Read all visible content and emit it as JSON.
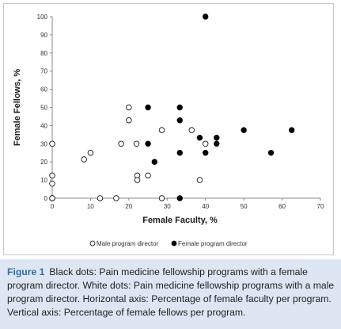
{
  "chart_data": {
    "type": "scatter",
    "xlabel": "Female Faculty, %",
    "ylabel": "Female Fellows, %",
    "xlim": [
      0,
      70
    ],
    "ylim": [
      0,
      100
    ],
    "x_ticks": [
      0,
      10,
      20,
      30,
      40,
      50,
      60,
      70
    ],
    "y_ticks": [
      0,
      10,
      20,
      30,
      40,
      50,
      60,
      70,
      80,
      90,
      100
    ],
    "grid": false,
    "legend_position": "bottom",
    "series": [
      {
        "name": "Male program director",
        "marker": "open-circle",
        "points": [
          [
            0,
            0
          ],
          [
            0,
            0
          ],
          [
            0,
            8
          ],
          [
            0,
            12.5
          ],
          [
            0,
            30
          ],
          [
            8.3,
            21.4
          ],
          [
            10,
            25
          ],
          [
            12.5,
            0
          ],
          [
            16.7,
            0
          ],
          [
            18,
            30
          ],
          [
            20,
            50
          ],
          [
            20,
            42.9
          ],
          [
            22,
            30
          ],
          [
            22.2,
            12.5
          ],
          [
            22.2,
            10
          ],
          [
            25,
            12.5
          ],
          [
            28.6,
            37.5
          ],
          [
            28.6,
            0
          ],
          [
            36.4,
            37.5
          ],
          [
            38.5,
            10
          ],
          [
            40,
            30
          ]
        ]
      },
      {
        "name": "Female program director",
        "marker": "filled-circle",
        "points": [
          [
            25,
            50
          ],
          [
            25,
            30
          ],
          [
            26.7,
            20
          ],
          [
            33.3,
            50
          ],
          [
            33.3,
            42.9
          ],
          [
            33.3,
            25
          ],
          [
            33.3,
            0
          ],
          [
            38.5,
            33.3
          ],
          [
            40,
            100
          ],
          [
            40,
            25
          ],
          [
            42.9,
            33.3
          ],
          [
            42.9,
            30
          ],
          [
            50,
            37.5
          ],
          [
            57.1,
            25
          ],
          [
            62.5,
            37.5
          ]
        ]
      }
    ]
  },
  "caption": {
    "label": "Figure 1",
    "text": "Black dots: Pain medicine fellowship programs with a female program director. White dots: Pain medicine fellowship programs with a male program director. Horizontal axis: Percentage of female faculty per program. Vertical axis: Percentage of female fellows per program."
  },
  "colors": {
    "caption_background": "#dde6f2",
    "caption_label": "#2e6fa3",
    "marker_fill_female": "#000000",
    "marker_fill_male": "#ffffff"
  }
}
